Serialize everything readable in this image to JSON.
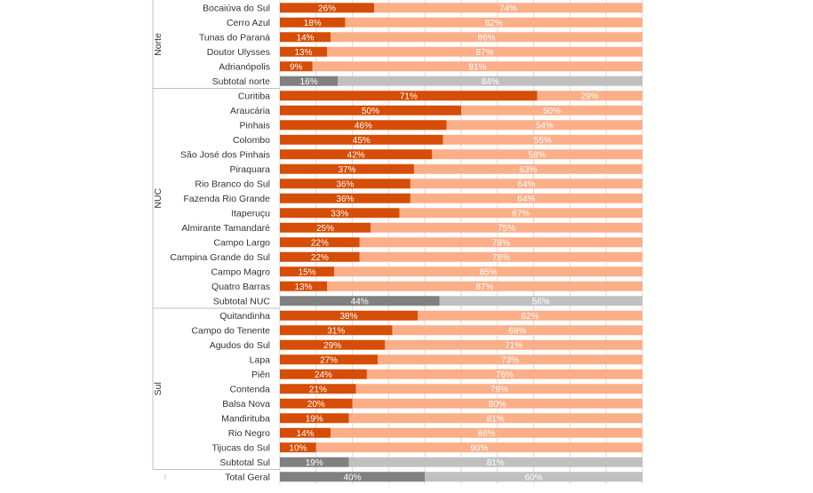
{
  "chart_data": {
    "type": "bar",
    "orientation": "horizontal",
    "stacked": "100%",
    "xlim": [
      0,
      100
    ],
    "grid": true,
    "colors": {
      "primary": "#D54D06",
      "secondary": "#FBAE87",
      "subtotal_primary": "#808080",
      "subtotal_secondary": "#C0C0C0"
    },
    "groups": [
      {
        "name": "Norte",
        "rows": [
          {
            "label": "Bocaiúva do Sul",
            "a": 26,
            "b": 74
          },
          {
            "label": "Cerro Azul",
            "a": 18,
            "b": 82
          },
          {
            "label": "Tunas do Paraná",
            "a": 14,
            "b": 86
          },
          {
            "label": "Doutor Ulysses",
            "a": 13,
            "b": 87
          },
          {
            "label": "Adrianópolis",
            "a": 9,
            "b": 91
          },
          {
            "label": "Subtotal norte",
            "a": 16,
            "b": 84,
            "subtotal": true
          }
        ]
      },
      {
        "name": "NUC",
        "rows": [
          {
            "label": "Curitiba",
            "a": 71,
            "b": 29
          },
          {
            "label": "Araucária",
            "a": 50,
            "b": 50
          },
          {
            "label": "Pinhais",
            "a": 46,
            "b": 54
          },
          {
            "label": "Colombo",
            "a": 45,
            "b": 55
          },
          {
            "label": "São José dos Pinhais",
            "a": 42,
            "b": 58
          },
          {
            "label": "Piraquara",
            "a": 37,
            "b": 63
          },
          {
            "label": "Rio Branco do Sul",
            "a": 36,
            "b": 64
          },
          {
            "label": "Fazenda Rio Grande",
            "a": 36,
            "b": 64
          },
          {
            "label": "Itaperuçu",
            "a": 33,
            "b": 67
          },
          {
            "label": "Almirante Tamandaré",
            "a": 25,
            "b": 75
          },
          {
            "label": "Campo Largo",
            "a": 22,
            "b": 78
          },
          {
            "label": "Campina Grande do Sul",
            "a": 22,
            "b": 78
          },
          {
            "label": "Campo Magro",
            "a": 15,
            "b": 85
          },
          {
            "label": "Quatro Barras",
            "a": 13,
            "b": 87
          },
          {
            "label": "Subtotal NUC",
            "a": 44,
            "b": 56,
            "subtotal": true
          }
        ]
      },
      {
        "name": "Sul",
        "rows": [
          {
            "label": "Quitandinha",
            "a": 38,
            "b": 62
          },
          {
            "label": "Campo do Tenente",
            "a": 31,
            "b": 69
          },
          {
            "label": "Agudos do Sul",
            "a": 29,
            "b": 71
          },
          {
            "label": "Lapa",
            "a": 27,
            "b": 73
          },
          {
            "label": "Piên",
            "a": 24,
            "b": 76
          },
          {
            "label": "Contenda",
            "a": 21,
            "b": 79
          },
          {
            "label": "Balsa Nova",
            "a": 20,
            "b": 80
          },
          {
            "label": "Mandirituba",
            "a": 19,
            "b": 81
          },
          {
            "label": "Rio Negro",
            "a": 14,
            "b": 86
          },
          {
            "label": "Tijucas do Sul",
            "a": 10,
            "b": 90
          },
          {
            "label": "Subtotal Sul",
            "a": 19,
            "b": 81,
            "subtotal": true
          }
        ]
      },
      {
        "name": "",
        "rows": [
          {
            "label": "Total Geral",
            "a": 40,
            "b": 60,
            "subtotal": true
          }
        ]
      }
    ]
  }
}
